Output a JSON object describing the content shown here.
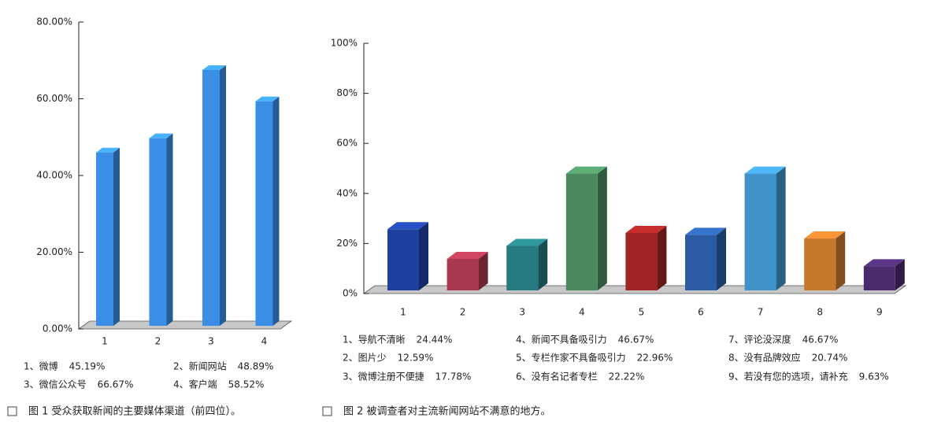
{
  "chart_data": [
    {
      "type": "bar3d",
      "caption": "图 1 受众获取新闻的主要媒体渠道（前四位）。",
      "categories": [
        "1",
        "2",
        "3",
        "4"
      ],
      "legend_labels": [
        "1、微博",
        "2、新闻网站",
        "3、微信公众号",
        "4、客户端"
      ],
      "values": [
        45.19,
        48.89,
        66.67,
        58.52
      ],
      "value_labels": [
        "45.19%",
        "48.89%",
        "66.67%",
        "58.52%"
      ],
      "colors": [
        "#3a8ee6",
        "#3a8ee6",
        "#3a8ee6",
        "#3a8ee6"
      ],
      "ylim": [
        0,
        80
      ],
      "yticks": [
        {
          "value": 0,
          "label": "0.00%"
        },
        {
          "value": 20,
          "label": "20.00%"
        },
        {
          "value": 40,
          "label": "40.00%"
        },
        {
          "value": 60,
          "label": "60.00%"
        },
        {
          "value": 80,
          "label": "80.00%"
        }
      ]
    },
    {
      "type": "bar3d",
      "caption": "图 2 被调查者对主流新闻网站不满意的地方。",
      "categories": [
        "1",
        "2",
        "3",
        "4",
        "5",
        "6",
        "7",
        "8",
        "9"
      ],
      "legend_labels": [
        "1、导航不清晰",
        "2、图片少",
        "3、微博注册不便捷",
        "4、新闻不具备吸引力",
        "5、专栏作家不具备吸引力",
        "6、没有名记者专栏",
        "7、评论没深度",
        "8、没有品牌效应",
        "9、若没有您的选项，请补充"
      ],
      "values": [
        24.44,
        12.59,
        17.78,
        46.67,
        22.96,
        22.22,
        46.67,
        20.74,
        9.63
      ],
      "value_labels": [
        "24.44%",
        "12.59%",
        "17.78%",
        "46.67%",
        "22.96%",
        "22.22%",
        "46.67%",
        "20.74%",
        "9.63%"
      ],
      "colors": [
        "#1f3f9e",
        "#a8384f",
        "#267a80",
        "#4a8a5e",
        "#a02424",
        "#2b5ca3",
        "#3f93c9",
        "#c8782c",
        "#4a2a6c"
      ],
      "ylim": [
        0,
        100
      ],
      "yticks": [
        {
          "value": 0,
          "label": "0%"
        },
        {
          "value": 20,
          "label": "20%"
        },
        {
          "value": 40,
          "label": "40%"
        },
        {
          "value": 60,
          "label": "60%"
        },
        {
          "value": 80,
          "label": "80%"
        },
        {
          "value": 100,
          "label": "100%"
        }
      ]
    }
  ]
}
